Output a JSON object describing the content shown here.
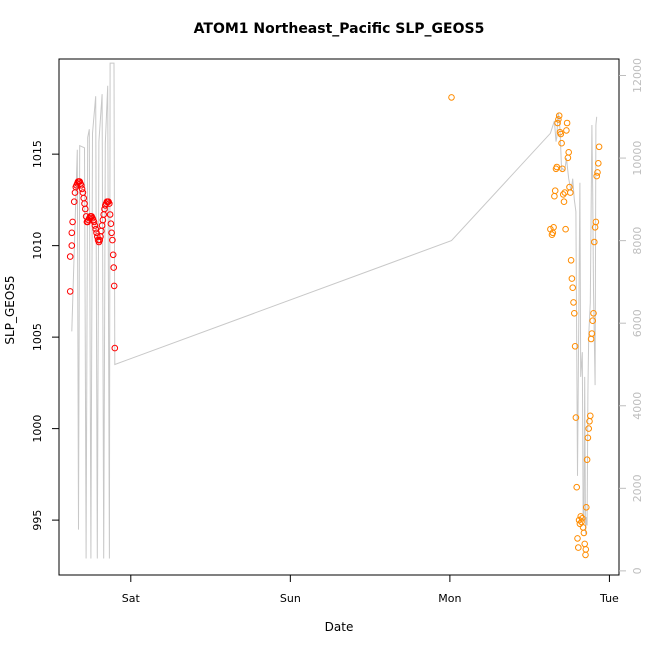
{
  "chart_data": {
    "type": "scatter",
    "title": "ATOM1 Northeast_Pacific SLP_GEOS5",
    "xlabel": "Date",
    "ylabel": "SLP_GEOS5",
    "x_ticks": [
      {
        "label": "Sat",
        "t": 1.0
      },
      {
        "label": "Sun",
        "t": 2.0
      },
      {
        "label": "Mon",
        "t": 3.0
      },
      {
        "label": "Tue",
        "t": 4.0
      }
    ],
    "xlim_days": [
      0.55,
      4.06
    ],
    "ylim": [
      992.0,
      1020.2
    ],
    "y_ticks": [
      995,
      1000,
      1005,
      1010,
      1015
    ],
    "y2lim": [
      -100,
      12400
    ],
    "y2_ticks": [
      0,
      2000,
      4000,
      6000,
      8000,
      10000,
      12000
    ],
    "grid": false,
    "colors": {
      "red": "#ff0000",
      "orange": "#ff8c00",
      "line": "#c8c8c8",
      "right_axis": "#bebebe"
    },
    "series": [
      {
        "color": "red",
        "points": [
          [
            0.62,
            1007.5
          ],
          [
            0.62,
            1009.4
          ],
          [
            0.63,
            1010.0
          ],
          [
            0.63,
            1010.7
          ],
          [
            0.635,
            1011.3
          ],
          [
            0.645,
            1012.4
          ],
          [
            0.65,
            1012.9
          ],
          [
            0.655,
            1013.2
          ],
          [
            0.66,
            1013.3
          ],
          [
            0.665,
            1013.4
          ],
          [
            0.67,
            1013.5
          ],
          [
            0.675,
            1013.5
          ],
          [
            0.68,
            1013.5
          ],
          [
            0.685,
            1013.4
          ],
          [
            0.69,
            1013.3
          ],
          [
            0.695,
            1013.1
          ],
          [
            0.7,
            1012.9
          ],
          [
            0.705,
            1012.6
          ],
          [
            0.71,
            1012.3
          ],
          [
            0.715,
            1012.0
          ],
          [
            0.72,
            1011.6
          ],
          [
            0.725,
            1011.3
          ],
          [
            0.73,
            1011.3
          ],
          [
            0.735,
            1011.4
          ],
          [
            0.74,
            1011.5
          ],
          [
            0.745,
            1011.6
          ],
          [
            0.75,
            1011.6
          ],
          [
            0.755,
            1011.6
          ],
          [
            0.76,
            1011.5
          ],
          [
            0.765,
            1011.4
          ],
          [
            0.77,
            1011.3
          ],
          [
            0.775,
            1011.1
          ],
          [
            0.78,
            1010.9
          ],
          [
            0.785,
            1010.7
          ],
          [
            0.79,
            1010.5
          ],
          [
            0.795,
            1010.3
          ],
          [
            0.8,
            1010.2
          ],
          [
            0.805,
            1010.3
          ],
          [
            0.81,
            1010.5
          ],
          [
            0.815,
            1010.8
          ],
          [
            0.82,
            1011.1
          ],
          [
            0.825,
            1011.4
          ],
          [
            0.83,
            1011.7
          ],
          [
            0.835,
            1012.0
          ],
          [
            0.84,
            1012.2
          ],
          [
            0.845,
            1012.3
          ],
          [
            0.85,
            1012.4
          ],
          [
            0.855,
            1012.4
          ],
          [
            0.86,
            1012.4
          ],
          [
            0.865,
            1012.3
          ],
          [
            0.87,
            1011.7
          ],
          [
            0.875,
            1011.2
          ],
          [
            0.88,
            1010.7
          ],
          [
            0.885,
            1010.3
          ],
          [
            0.89,
            1009.5
          ],
          [
            0.893,
            1008.8
          ],
          [
            0.896,
            1007.8
          ],
          [
            0.9,
            1004.4
          ]
        ]
      },
      {
        "color": "orange",
        "points": [
          [
            3.01,
            1018.1
          ],
          [
            3.63,
            1010.9
          ],
          [
            3.64,
            1010.6
          ],
          [
            3.645,
            1010.7
          ],
          [
            3.65,
            1011.0
          ],
          [
            3.655,
            1012.7
          ],
          [
            3.66,
            1013.0
          ],
          [
            3.665,
            1014.2
          ],
          [
            3.67,
            1014.3
          ],
          [
            3.675,
            1016.7
          ],
          [
            3.68,
            1016.9
          ],
          [
            3.685,
            1017.1
          ],
          [
            3.69,
            1016.2
          ],
          [
            3.695,
            1016.1
          ],
          [
            3.7,
            1015.6
          ],
          [
            3.705,
            1014.2
          ],
          [
            3.71,
            1012.8
          ],
          [
            3.715,
            1012.4
          ],
          [
            3.72,
            1012.9
          ],
          [
            3.725,
            1010.9
          ],
          [
            3.73,
            1016.3
          ],
          [
            3.735,
            1016.7
          ],
          [
            3.74,
            1014.8
          ],
          [
            3.745,
            1015.1
          ],
          [
            3.75,
            1013.2
          ],
          [
            3.755,
            1012.9
          ],
          [
            3.76,
            1009.2
          ],
          [
            3.765,
            1008.2
          ],
          [
            3.77,
            1007.7
          ],
          [
            3.775,
            1006.9
          ],
          [
            3.78,
            1006.3
          ],
          [
            3.785,
            1004.5
          ],
          [
            3.79,
            1000.6
          ],
          [
            3.795,
            996.8
          ],
          [
            3.8,
            994.0
          ],
          [
            3.805,
            993.5
          ],
          [
            3.81,
            995.0
          ],
          [
            3.815,
            994.8
          ],
          [
            3.82,
            995.2
          ],
          [
            3.825,
            994.9
          ],
          [
            3.83,
            995.1
          ],
          [
            3.835,
            994.6
          ],
          [
            3.84,
            994.3
          ],
          [
            3.845,
            993.7
          ],
          [
            3.85,
            993.1
          ],
          [
            3.852,
            993.4
          ],
          [
            3.855,
            995.7
          ],
          [
            3.86,
            998.3
          ],
          [
            3.865,
            999.5
          ],
          [
            3.87,
            1000.0
          ],
          [
            3.875,
            1000.4
          ],
          [
            3.88,
            1000.7
          ],
          [
            3.885,
            1004.9
          ],
          [
            3.89,
            1005.2
          ],
          [
            3.895,
            1005.9
          ],
          [
            3.9,
            1006.3
          ],
          [
            3.905,
            1010.2
          ],
          [
            3.91,
            1011.0
          ],
          [
            3.915,
            1011.3
          ],
          [
            3.92,
            1013.8
          ],
          [
            3.925,
            1014.0
          ],
          [
            3.93,
            1014.5
          ],
          [
            3.935,
            1015.4
          ]
        ]
      }
    ],
    "secondary_line": [
      [
        0.63,
        5800
      ],
      [
        0.665,
        10200
      ],
      [
        0.672,
        1000
      ],
      [
        0.68,
        10300
      ],
      [
        0.71,
        10250
      ],
      [
        0.72,
        300
      ],
      [
        0.73,
        10500
      ],
      [
        0.74,
        10700
      ],
      [
        0.75,
        300
      ],
      [
        0.76,
        10600
      ],
      [
        0.78,
        11500
      ],
      [
        0.79,
        300
      ],
      [
        0.8,
        10400
      ],
      [
        0.82,
        11550
      ],
      [
        0.83,
        300
      ],
      [
        0.84,
        10350
      ],
      [
        0.855,
        11750
      ],
      [
        0.866,
        300
      ],
      [
        0.87,
        12300
      ],
      [
        0.895,
        12300
      ],
      [
        0.9,
        5000
      ],
      [
        3.01,
        8000
      ],
      [
        3.63,
        10600
      ],
      [
        3.655,
        10900
      ],
      [
        3.665,
        10400
      ],
      [
        3.67,
        10500
      ],
      [
        3.675,
        10900
      ],
      [
        3.68,
        11100
      ],
      [
        3.69,
        10700
      ],
      [
        3.7,
        9700
      ],
      [
        3.705,
        9750
      ],
      [
        3.72,
        9700
      ],
      [
        3.73,
        10000
      ],
      [
        3.745,
        9500
      ],
      [
        3.76,
        9200
      ],
      [
        3.77,
        9500
      ],
      [
        3.78,
        9000
      ],
      [
        3.79,
        8700
      ],
      [
        3.8,
        2300
      ],
      [
        3.815,
        9400
      ],
      [
        3.82,
        4700
      ],
      [
        3.83,
        5300
      ],
      [
        3.835,
        1400
      ],
      [
        3.84,
        1200
      ],
      [
        3.845,
        4700
      ],
      [
        3.85,
        900
      ],
      [
        3.855,
        1300
      ],
      [
        3.86,
        1100
      ],
      [
        3.865,
        4300
      ],
      [
        3.87,
        5700
      ],
      [
        3.88,
        6500
      ],
      [
        3.89,
        10800
      ],
      [
        3.895,
        9200
      ],
      [
        3.9,
        6800
      ],
      [
        3.91,
        4500
      ],
      [
        3.915,
        10800
      ],
      [
        3.92,
        11000
      ]
    ]
  }
}
